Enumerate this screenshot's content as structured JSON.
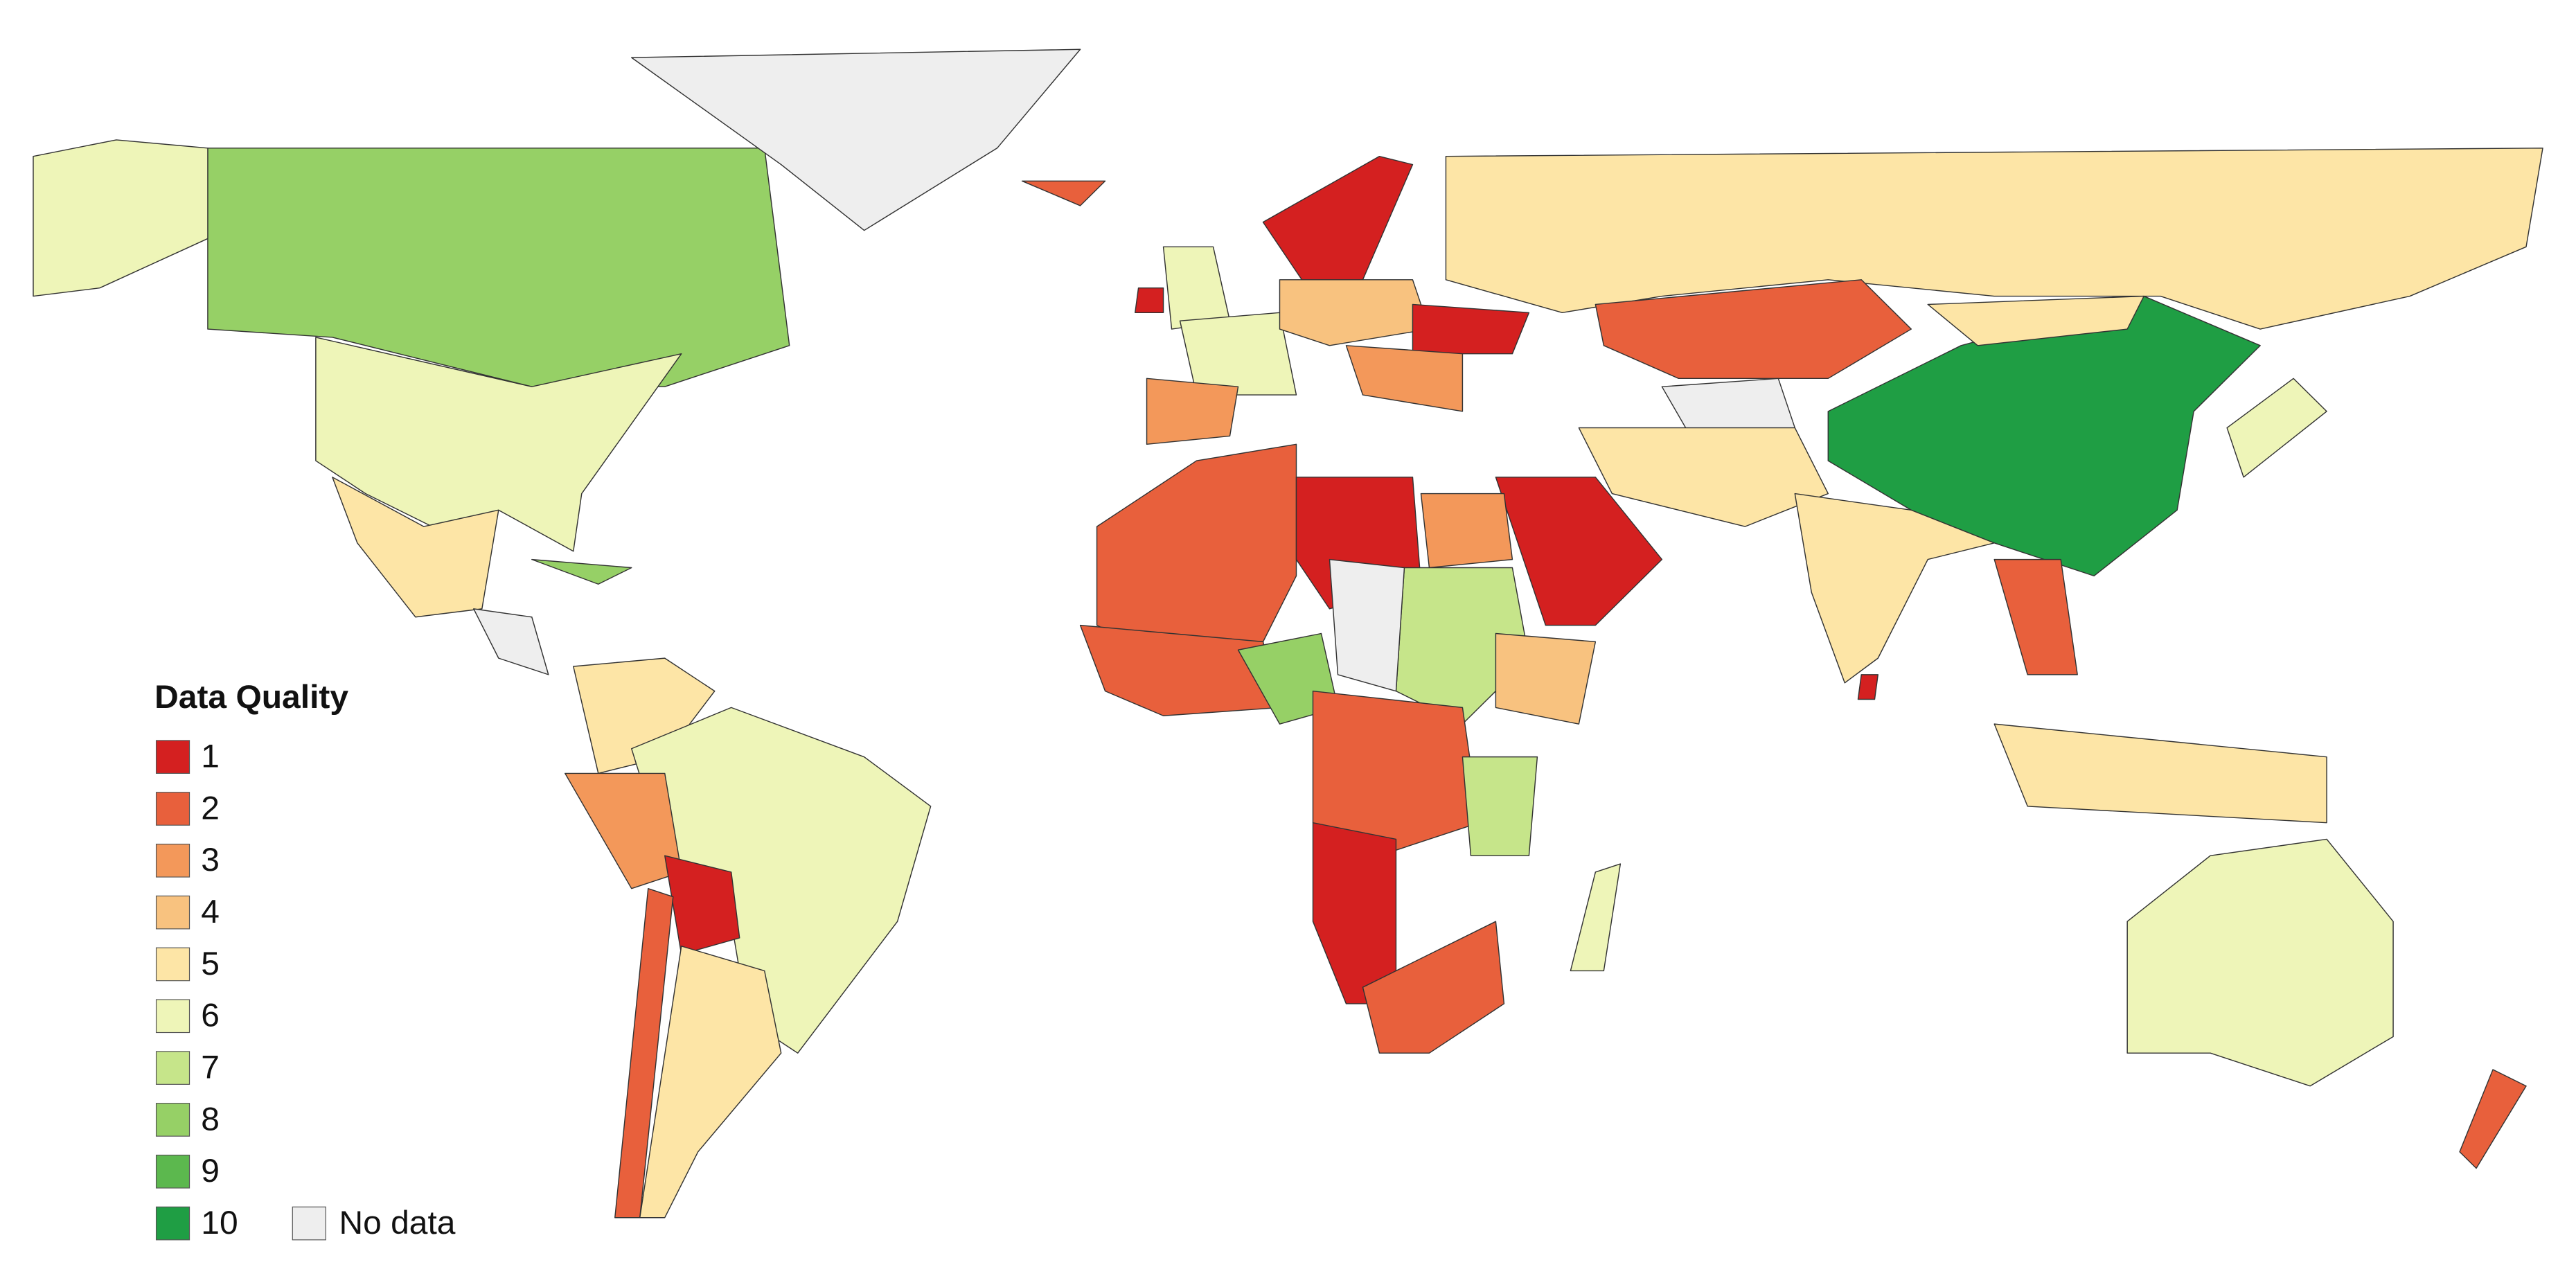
{
  "legend": {
    "title": "Data Quality",
    "items": [
      {
        "value": 1,
        "color": "#d42020"
      },
      {
        "value": 2,
        "color": "#e8603c"
      },
      {
        "value": 3,
        "color": "#f3985a"
      },
      {
        "value": 4,
        "color": "#f8c27f"
      },
      {
        "value": 5,
        "color": "#fde5a6"
      },
      {
        "value": 6,
        "color": "#eef5b8"
      },
      {
        "value": 7,
        "color": "#c6e58a"
      },
      {
        "value": 8,
        "color": "#96d066"
      },
      {
        "value": 9,
        "color": "#5cb84e"
      },
      {
        "value": 10,
        "color": "#1f9e44"
      }
    ],
    "no_data": {
      "label": "No data",
      "color": "#eeeeee"
    }
  },
  "map": {
    "values": [
      8,
      6,
      null,
      6,
      5,
      null,
      8,
      5,
      6,
      3,
      1,
      2,
      5,
      2,
      6,
      1,
      1,
      6,
      3,
      4,
      1,
      3,
      5,
      2,
      null,
      10,
      5,
      5,
      5,
      1,
      2,
      5,
      6,
      6,
      2,
      2,
      1,
      3,
      7,
      null,
      2,
      8,
      4,
      2,
      7,
      1,
      2,
      6,
      1
    ]
  }
}
